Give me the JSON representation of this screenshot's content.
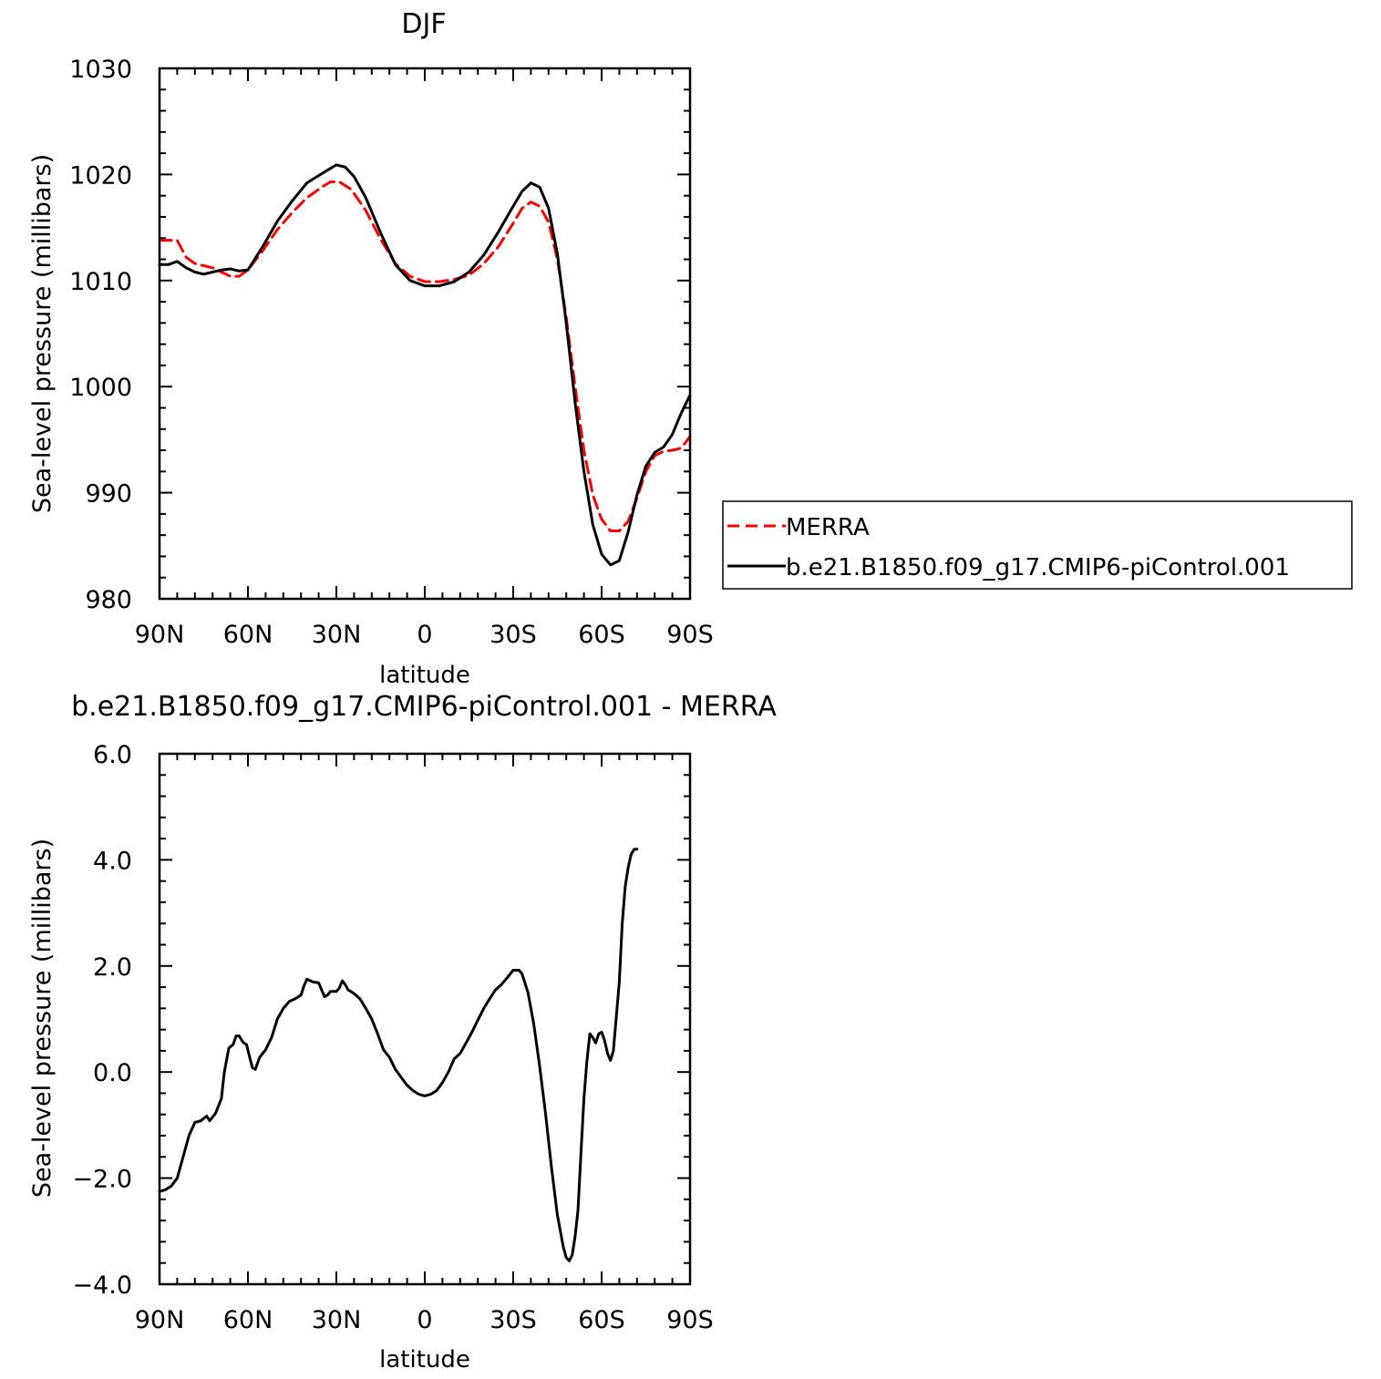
{
  "chart_data": [
    {
      "type": "line",
      "title": "DJF",
      "xlabel": "latitude",
      "ylabel": "Sea-level pressure (millibars)",
      "xlim": [
        90,
        -90
      ],
      "ylim": [
        980,
        1030
      ],
      "x_ticks": [
        90,
        60,
        30,
        0,
        -30,
        -60,
        -90
      ],
      "x_tick_labels": [
        "90N",
        "60N",
        "30N",
        "0",
        "30S",
        "60S",
        "90S"
      ],
      "y_ticks": [
        980,
        990,
        1000,
        1010,
        1020,
        1030
      ],
      "y_tick_labels": [
        "980",
        "990",
        "1000",
        "1010",
        "1020",
        "1030"
      ],
      "legend_position": "right",
      "series": [
        {
          "name": "MERRA",
          "color": "#ff0000",
          "dash": "dashed",
          "points": [
            [
              90,
              1013.8
            ],
            [
              87,
              1013.8
            ],
            [
              84,
              1013.8
            ],
            [
              81,
              1012.2
            ],
            [
              78,
              1011.6
            ],
            [
              75,
              1011.4
            ],
            [
              72,
              1011.2
            ],
            [
              69,
              1010.8
            ],
            [
              66,
              1010.4
            ],
            [
              63,
              1010.4
            ],
            [
              60,
              1011.0
            ],
            [
              55,
              1012.8
            ],
            [
              50,
              1014.8
            ],
            [
              45,
              1016.4
            ],
            [
              40,
              1017.8
            ],
            [
              35,
              1018.8
            ],
            [
              32,
              1019.3
            ],
            [
              29,
              1019.3
            ],
            [
              25,
              1018.6
            ],
            [
              20,
              1016.6
            ],
            [
              15,
              1013.9
            ],
            [
              10,
              1011.6
            ],
            [
              5,
              1010.4
            ],
            [
              0,
              1009.9
            ],
            [
              -5,
              1009.9
            ],
            [
              -10,
              1010.1
            ],
            [
              -15,
              1010.5
            ],
            [
              -20,
              1011.6
            ],
            [
              -25,
              1013.2
            ],
            [
              -30,
              1015.4
            ],
            [
              -33,
              1016.8
            ],
            [
              -36,
              1017.4
            ],
            [
              -39,
              1017.0
            ],
            [
              -42,
              1015.5
            ],
            [
              -45,
              1012.0
            ],
            [
              -48,
              1006.5
            ],
            [
              -51,
              1000.0
            ],
            [
              -54,
              994.0
            ],
            [
              -57,
              989.8
            ],
            [
              -60,
              987.5
            ],
            [
              -63,
              986.4
            ],
            [
              -66,
              986.4
            ],
            [
              -69,
              987.3
            ],
            [
              -72,
              989.5
            ],
            [
              -75,
              992.0
            ],
            [
              -78,
              993.5
            ],
            [
              -81,
              993.9
            ],
            [
              -84,
              994.0
            ],
            [
              -87,
              994.2
            ],
            [
              -90,
              995.3
            ]
          ]
        },
        {
          "name": "b.e21.B1850.f09_g17.CMIP6-piControl.001",
          "color": "#000000",
          "dash": "solid",
          "points": [
            [
              90,
              1011.5
            ],
            [
              87,
              1011.5
            ],
            [
              84,
              1011.8
            ],
            [
              81,
              1011.2
            ],
            [
              78,
              1010.8
            ],
            [
              75,
              1010.6
            ],
            [
              72,
              1010.8
            ],
            [
              69,
              1011.0
            ],
            [
              66,
              1011.1
            ],
            [
              63,
              1010.9
            ],
            [
              60,
              1011.0
            ],
            [
              55,
              1013.2
            ],
            [
              50,
              1015.6
            ],
            [
              45,
              1017.5
            ],
            [
              40,
              1019.2
            ],
            [
              36,
              1019.9
            ],
            [
              33,
              1020.4
            ],
            [
              30,
              1020.9
            ],
            [
              27,
              1020.7
            ],
            [
              24,
              1019.8
            ],
            [
              20,
              1017.8
            ],
            [
              15,
              1014.5
            ],
            [
              10,
              1011.5
            ],
            [
              5,
              1010.0
            ],
            [
              0,
              1009.5
            ],
            [
              -5,
              1009.5
            ],
            [
              -10,
              1009.9
            ],
            [
              -15,
              1010.8
            ],
            [
              -20,
              1012.4
            ],
            [
              -25,
              1014.6
            ],
            [
              -30,
              1017.0
            ],
            [
              -33,
              1018.4
            ],
            [
              -36,
              1019.2
            ],
            [
              -39,
              1018.8
            ],
            [
              -42,
              1016.8
            ],
            [
              -45,
              1012.5
            ],
            [
              -48,
              1006.0
            ],
            [
              -51,
              998.5
            ],
            [
              -54,
              992.0
            ],
            [
              -57,
              987.0
            ],
            [
              -60,
              984.2
            ],
            [
              -63,
              983.2
            ],
            [
              -66,
              983.6
            ],
            [
              -69,
              986.3
            ],
            [
              -72,
              989.8
            ],
            [
              -75,
              992.5
            ],
            [
              -78,
              993.8
            ],
            [
              -81,
              994.3
            ],
            [
              -84,
              995.5
            ],
            [
              -87,
              997.5
            ],
            [
              -90,
              999.2
            ]
          ]
        }
      ]
    },
    {
      "type": "line",
      "title": "b.e21.B1850.f09_g17.CMIP6-piControl.001 - MERRA",
      "xlabel": "latitude",
      "ylabel": "Sea-level pressure (millibars)",
      "xlim": [
        90,
        -90
      ],
      "ylim": [
        -4.0,
        6.0
      ],
      "x_ticks": [
        90,
        60,
        30,
        0,
        -30,
        -60,
        -90
      ],
      "x_tick_labels": [
        "90N",
        "60N",
        "30N",
        "0",
        "30S",
        "60S",
        "90S"
      ],
      "y_ticks": [
        -4.0,
        -2.0,
        0.0,
        2.0,
        4.0,
        6.0
      ],
      "y_tick_labels": [
        "−4.0",
        "−2.0",
        "0.0",
        "2.0",
        "4.0",
        "6.0"
      ],
      "series": [
        {
          "color": "#000000",
          "dash": "solid",
          "points": [
            [
              90,
              -2.25
            ],
            [
              88,
              -2.22
            ],
            [
              86,
              -2.15
            ],
            [
              84,
              -2.0
            ],
            [
              82,
              -1.6
            ],
            [
              80,
              -1.2
            ],
            [
              78,
              -0.95
            ],
            [
              76,
              -0.92
            ],
            [
              74,
              -0.83
            ],
            [
              73,
              -0.92
            ],
            [
              71,
              -0.78
            ],
            [
              69,
              -0.5
            ],
            [
              68,
              0.0
            ],
            [
              66.5,
              0.45
            ],
            [
              65,
              0.52
            ],
            [
              64,
              0.68
            ],
            [
              63,
              0.68
            ],
            [
              61.5,
              0.55
            ],
            [
              60.5,
              0.52
            ],
            [
              59.5,
              0.3
            ],
            [
              58.5,
              0.08
            ],
            [
              57.5,
              0.05
            ],
            [
              56,
              0.28
            ],
            [
              54,
              0.42
            ],
            [
              52,
              0.65
            ],
            [
              50,
              1.0
            ],
            [
              48,
              1.2
            ],
            [
              46,
              1.33
            ],
            [
              44,
              1.38
            ],
            [
              42,
              1.45
            ],
            [
              41,
              1.62
            ],
            [
              40,
              1.75
            ],
            [
              38,
              1.7
            ],
            [
              36,
              1.68
            ],
            [
              35,
              1.55
            ],
            [
              34,
              1.42
            ],
            [
              33,
              1.45
            ],
            [
              32,
              1.52
            ],
            [
              30,
              1.52
            ],
            [
              29,
              1.58
            ],
            [
              28,
              1.72
            ],
            [
              27,
              1.65
            ],
            [
              26,
              1.55
            ],
            [
              24,
              1.48
            ],
            [
              22,
              1.38
            ],
            [
              20,
              1.2
            ],
            [
              18,
              1.0
            ],
            [
              16,
              0.72
            ],
            [
              14,
              0.42
            ],
            [
              12,
              0.28
            ],
            [
              10,
              0.05
            ],
            [
              8,
              -0.1
            ],
            [
              6,
              -0.25
            ],
            [
              4,
              -0.35
            ],
            [
              2,
              -0.42
            ],
            [
              0,
              -0.45
            ],
            [
              -2,
              -0.42
            ],
            [
              -4,
              -0.35
            ],
            [
              -6,
              -0.2
            ],
            [
              -8,
              0.0
            ],
            [
              -10,
              0.25
            ],
            [
              -12,
              0.35
            ],
            [
              -14,
              0.55
            ],
            [
              -16,
              0.75
            ],
            [
              -18,
              0.98
            ],
            [
              -20,
              1.2
            ],
            [
              -22,
              1.38
            ],
            [
              -24,
              1.55
            ],
            [
              -26,
              1.65
            ],
            [
              -28,
              1.78
            ],
            [
              -30,
              1.92
            ],
            [
              -32,
              1.92
            ],
            [
              -33,
              1.85
            ],
            [
              -35,
              1.5
            ],
            [
              -37,
              0.9
            ],
            [
              -39,
              0.1
            ],
            [
              -41,
              -0.8
            ],
            [
              -43,
              -1.8
            ],
            [
              -45,
              -2.7
            ],
            [
              -47,
              -3.3
            ],
            [
              -48,
              -3.5
            ],
            [
              -49,
              -3.56
            ],
            [
              -50,
              -3.45
            ],
            [
              -51,
              -3.1
            ],
            [
              -52,
              -2.6
            ],
            [
              -53,
              -1.5
            ],
            [
              -54,
              -0.5
            ],
            [
              -55,
              0.2
            ],
            [
              -56,
              0.72
            ],
            [
              -57,
              0.65
            ],
            [
              -58,
              0.55
            ],
            [
              -59,
              0.72
            ],
            [
              -60,
              0.75
            ],
            [
              -61,
              0.6
            ],
            [
              -62,
              0.35
            ],
            [
              -63,
              0.22
            ],
            [
              -64,
              0.4
            ],
            [
              -66,
              1.7
            ],
            [
              -67,
              2.8
            ],
            [
              -68,
              3.5
            ],
            [
              -69,
              3.85
            ],
            [
              -70,
              4.1
            ],
            [
              -71,
              4.2
            ],
            [
              -72,
              4.2
            ]
          ]
        }
      ]
    }
  ]
}
